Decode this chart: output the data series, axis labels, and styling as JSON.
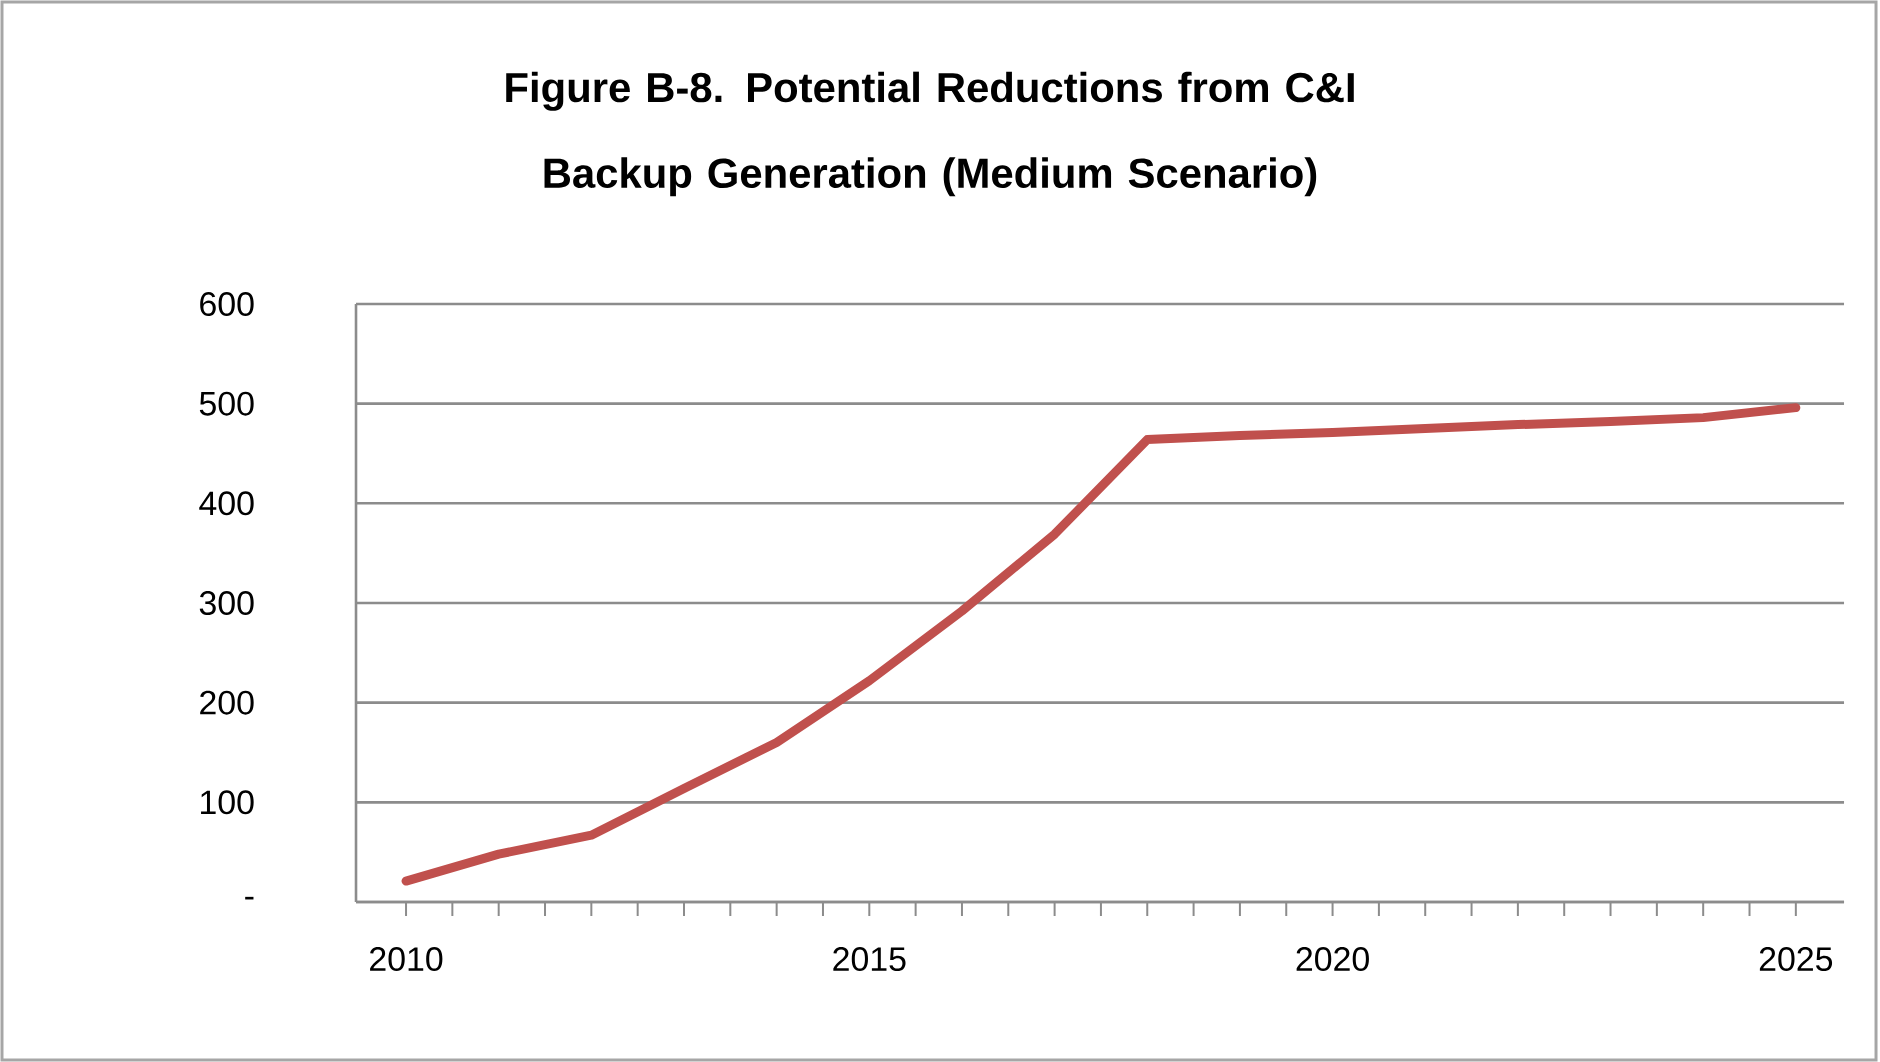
{
  "chart_data": {
    "type": "line",
    "title": "Figure B-8. Potential Reductions from C&I Backup Generation (Medium Scenario)",
    "x": [
      2010,
      2011,
      2012,
      2013,
      2014,
      2015,
      2016,
      2017,
      2018,
      2019,
      2020,
      2021,
      2022,
      2023,
      2024,
      2025
    ],
    "series": [
      {
        "color": "#c0504d",
        "values": [
          21,
          48,
          67,
          114,
          160,
          222,
          292,
          369,
          464,
          468,
          471,
          475,
          479,
          482,
          486,
          496
        ]
      }
    ],
    "xlim": [
      2009.46,
      2025.52
    ],
    "xticks": [
      2010,
      2015,
      2020,
      2025
    ],
    "ylim": [
      0,
      600
    ],
    "yticks": [
      {
        "value": 0,
        "label": "-"
      },
      100,
      200,
      300,
      400,
      500,
      600
    ],
    "grid": "y",
    "marker": "none",
    "line_style": "solid"
  }
}
